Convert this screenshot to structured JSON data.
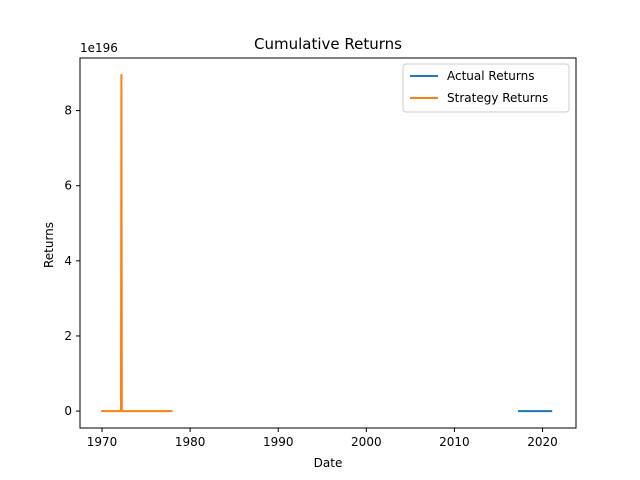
{
  "chart_data": {
    "type": "line",
    "title": "Cumulative Returns",
    "xlabel": "Date",
    "ylabel": "Returns",
    "y_offset_label": "1e196",
    "xlim": [
      1967.5,
      2023.8
    ],
    "ylim": [
      -0.45,
      9.4
    ],
    "x_ticks": [
      1970,
      1980,
      1990,
      2000,
      2010,
      2020
    ],
    "x_tick_labels": [
      "1970",
      "1980",
      "1990",
      "2000",
      "2010",
      "2020"
    ],
    "y_ticks": [
      0,
      2,
      4,
      6,
      8
    ],
    "y_tick_labels": [
      "0",
      "2",
      "4",
      "6",
      "8"
    ],
    "grid": false,
    "legend_position": "upper-right",
    "series": [
      {
        "name": "Actual Returns",
        "color": "#1f77b4",
        "points": [
          [
            2017.2,
            0
          ],
          [
            2021.1,
            0
          ]
        ]
      },
      {
        "name": "Strategy Returns",
        "color": "#ff7f0e",
        "points": [
          [
            1969.9,
            0
          ],
          [
            1972.1,
            0
          ],
          [
            1972.15,
            0.02
          ],
          [
            1972.2,
            8.95
          ],
          [
            1972.25,
            0.03
          ],
          [
            1972.3,
            0
          ],
          [
            1978.0,
            0
          ]
        ]
      }
    ]
  }
}
